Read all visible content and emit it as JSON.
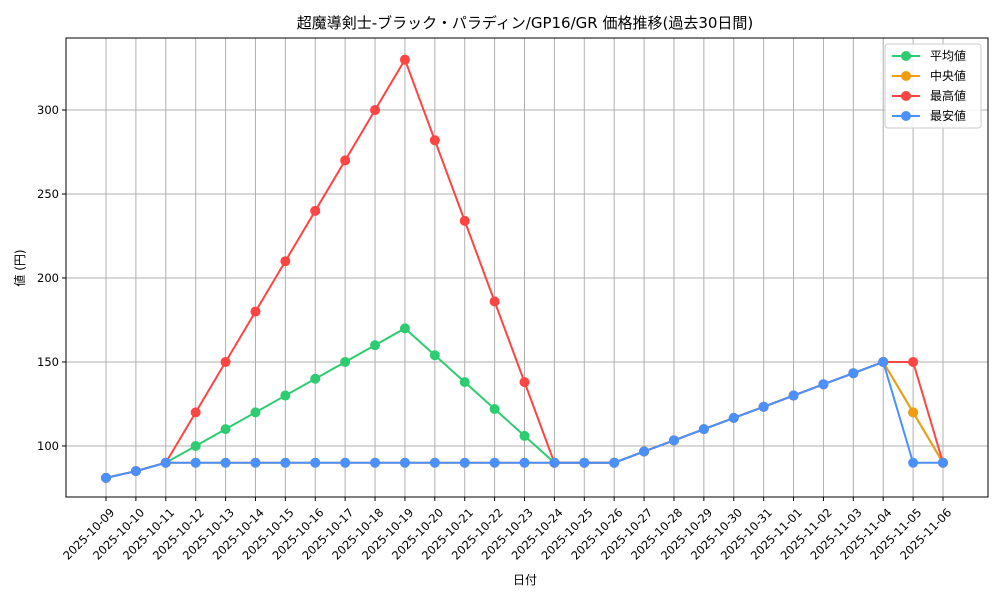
{
  "chart_data": {
    "type": "line",
    "title": "超魔導剣士-ブラック・パラディン/GP16/GR 価格推移(過去30日間)",
    "xlabel": "日付",
    "ylabel": "値 (円)",
    "ylim": [
      69.6,
      342.9
    ],
    "yticks": [
      100,
      150,
      200,
      250,
      300
    ],
    "grid": true,
    "legend_position": "top-right",
    "x": [
      "2025-10-09",
      "2025-10-10",
      "2025-10-11",
      "2025-10-12",
      "2025-10-13",
      "2025-10-14",
      "2025-10-15",
      "2025-10-16",
      "2025-10-17",
      "2025-10-18",
      "2025-10-19",
      "2025-10-20",
      "2025-10-21",
      "2025-10-22",
      "2025-10-23",
      "2025-10-24",
      "2025-10-25",
      "2025-10-26",
      "2025-10-27",
      "2025-10-28",
      "2025-10-29",
      "2025-10-30",
      "2025-10-31",
      "2025-11-01",
      "2025-11-02",
      "2025-11-03",
      "2025-11-04",
      "2025-11-05",
      "2025-11-06"
    ],
    "series": [
      {
        "name": "平均値",
        "color": "#2ecc71",
        "values": [
          81,
          85,
          90,
          100,
          110,
          120,
          130,
          140,
          150,
          160,
          170,
          154,
          138,
          122,
          106,
          90,
          90,
          90,
          96.7,
          103.3,
          110,
          116.7,
          123.3,
          130,
          136.7,
          143.3,
          150,
          120,
          90
        ]
      },
      {
        "name": "中央値",
        "color": "#f39c12",
        "values": [
          81,
          85,
          90,
          90,
          90,
          90,
          90,
          90,
          90,
          90,
          90,
          90,
          90,
          90,
          90,
          90,
          90,
          90,
          96.7,
          103.3,
          110,
          116.7,
          123.3,
          130,
          136.7,
          143.3,
          150,
          120,
          90
        ]
      },
      {
        "name": "最高値",
        "color": "#ff4444",
        "values": [
          81,
          85,
          90,
          120,
          150,
          180,
          210,
          240,
          270,
          300,
          330,
          282,
          234,
          186,
          138,
          90,
          90,
          90,
          96.7,
          103.3,
          110,
          116.7,
          123.3,
          130,
          136.7,
          143.3,
          150,
          150,
          90
        ]
      },
      {
        "name": "最安値",
        "color": "#4a90ff",
        "values": [
          81,
          85,
          90,
          90,
          90,
          90,
          90,
          90,
          90,
          90,
          90,
          90,
          90,
          90,
          90,
          90,
          90,
          90,
          96.7,
          103.3,
          110,
          116.7,
          123.3,
          130,
          136.7,
          143.3,
          150,
          90,
          90
        ]
      }
    ]
  }
}
